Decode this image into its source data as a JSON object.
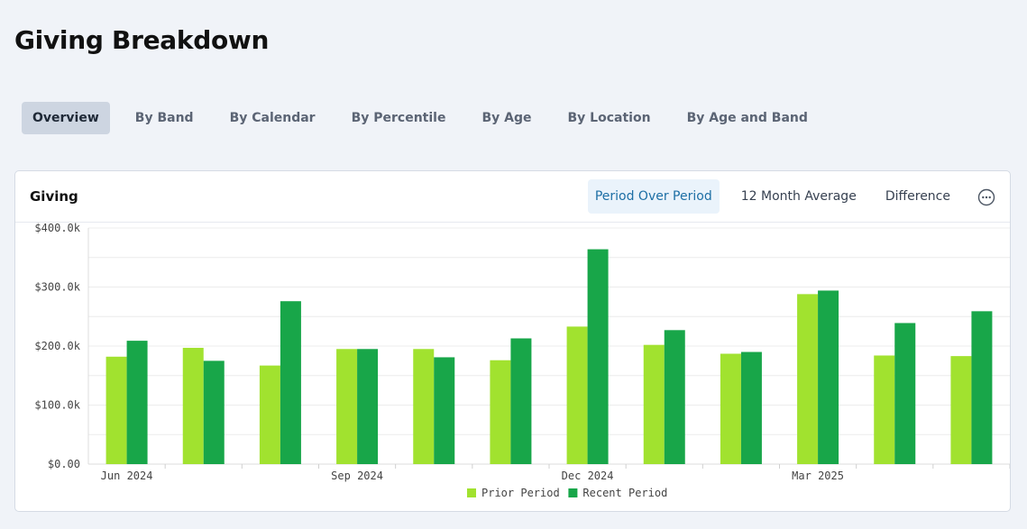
{
  "page": {
    "title": "Giving Breakdown"
  },
  "tabs": [
    {
      "label": "Overview",
      "active": true
    },
    {
      "label": "By Band"
    },
    {
      "label": "By Calendar"
    },
    {
      "label": "By Percentile"
    },
    {
      "label": "By Age"
    },
    {
      "label": "By Location"
    },
    {
      "label": "By Age and Band"
    }
  ],
  "card": {
    "title": "Giving",
    "views": [
      {
        "label": "Period Over Period",
        "active": true
      },
      {
        "label": "12 Month Average"
      },
      {
        "label": "Difference"
      }
    ],
    "more_icon": "more-horizontal-icon"
  },
  "colors": {
    "prior": "#a1e22f",
    "recent": "#18a649",
    "active_view_text": "#1d6fa5"
  },
  "chart_data": {
    "type": "bar",
    "categories": [
      "Jun 2024",
      "Jul 2024",
      "Aug 2024",
      "Sep 2024",
      "Oct 2024",
      "Nov 2024",
      "Dec 2024",
      "Jan 2025",
      "Feb 2025",
      "Mar 2025",
      "Apr 2025",
      "May 2025"
    ],
    "tick_labels": [
      "Jun 2024",
      "Sep 2024",
      "Dec 2024",
      "Mar 2025"
    ],
    "series": [
      {
        "name": "Prior Period",
        "values": [
          182,
          197,
          167,
          195,
          195,
          176,
          233,
          202,
          187,
          288,
          184,
          183
        ]
      },
      {
        "name": "Recent Period",
        "values": [
          209,
          175,
          276,
          195,
          181,
          213,
          364,
          227,
          190,
          294,
          239,
          259
        ]
      }
    ],
    "ylim": [
      0,
      400
    ],
    "y_ticks": [
      "$0.00",
      "$100.0k",
      "$200.0k",
      "$300.0k",
      "$400.0k"
    ],
    "grid": true,
    "legend": "bottom"
  }
}
